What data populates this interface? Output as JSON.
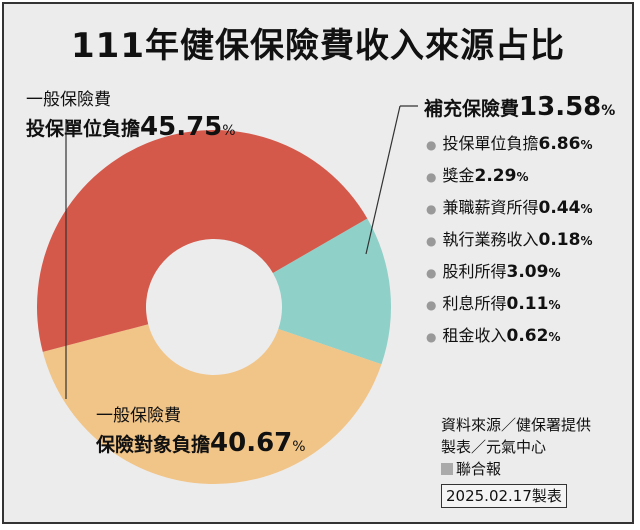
{
  "title": "111年健保保險費收入來源占比",
  "chart_data": {
    "type": "pie",
    "title": "111年健保保險費收入來源占比",
    "donut": true,
    "slices": [
      {
        "name": "補充保險費",
        "value": 13.58,
        "color": "#8fd0c8"
      },
      {
        "name": "一般保險費 保險對象負擔",
        "value": 40.67,
        "color": "#f1c487"
      },
      {
        "name": "一般保險費 投保單位負擔",
        "value": 45.75,
        "color": "#d4594b"
      }
    ]
  },
  "labels": {
    "employer": {
      "sub": "一般保險費",
      "main": "投保單位負擔",
      "value": "45.75",
      "unit": "%"
    },
    "insured": {
      "sub": "一般保險費",
      "main": "保險對象負擔",
      "value": "40.67",
      "unit": "%"
    }
  },
  "legend": {
    "head": {
      "name": "補充保險費",
      "value": "13.58",
      "unit": "%"
    },
    "items": [
      {
        "name": "投保單位負擔",
        "value": "6.86",
        "unit": "%"
      },
      {
        "name": "獎金",
        "value": "2.29",
        "unit": "%"
      },
      {
        "name": "兼職薪資所得",
        "value": "0.44",
        "unit": "%"
      },
      {
        "name": "執行業務收入",
        "value": "0.18",
        "unit": "%"
      },
      {
        "name": "股利所得",
        "value": "3.09",
        "unit": "%"
      },
      {
        "name": "利息所得",
        "value": "0.11",
        "unit": "%"
      },
      {
        "name": "租金收入",
        "value": "0.62",
        "unit": "%"
      }
    ]
  },
  "source": {
    "line1": "資料來源／健保署提供",
    "line2": "製表／元氣中心",
    "brand": "聯合報",
    "date": "2025.02.17製表"
  }
}
